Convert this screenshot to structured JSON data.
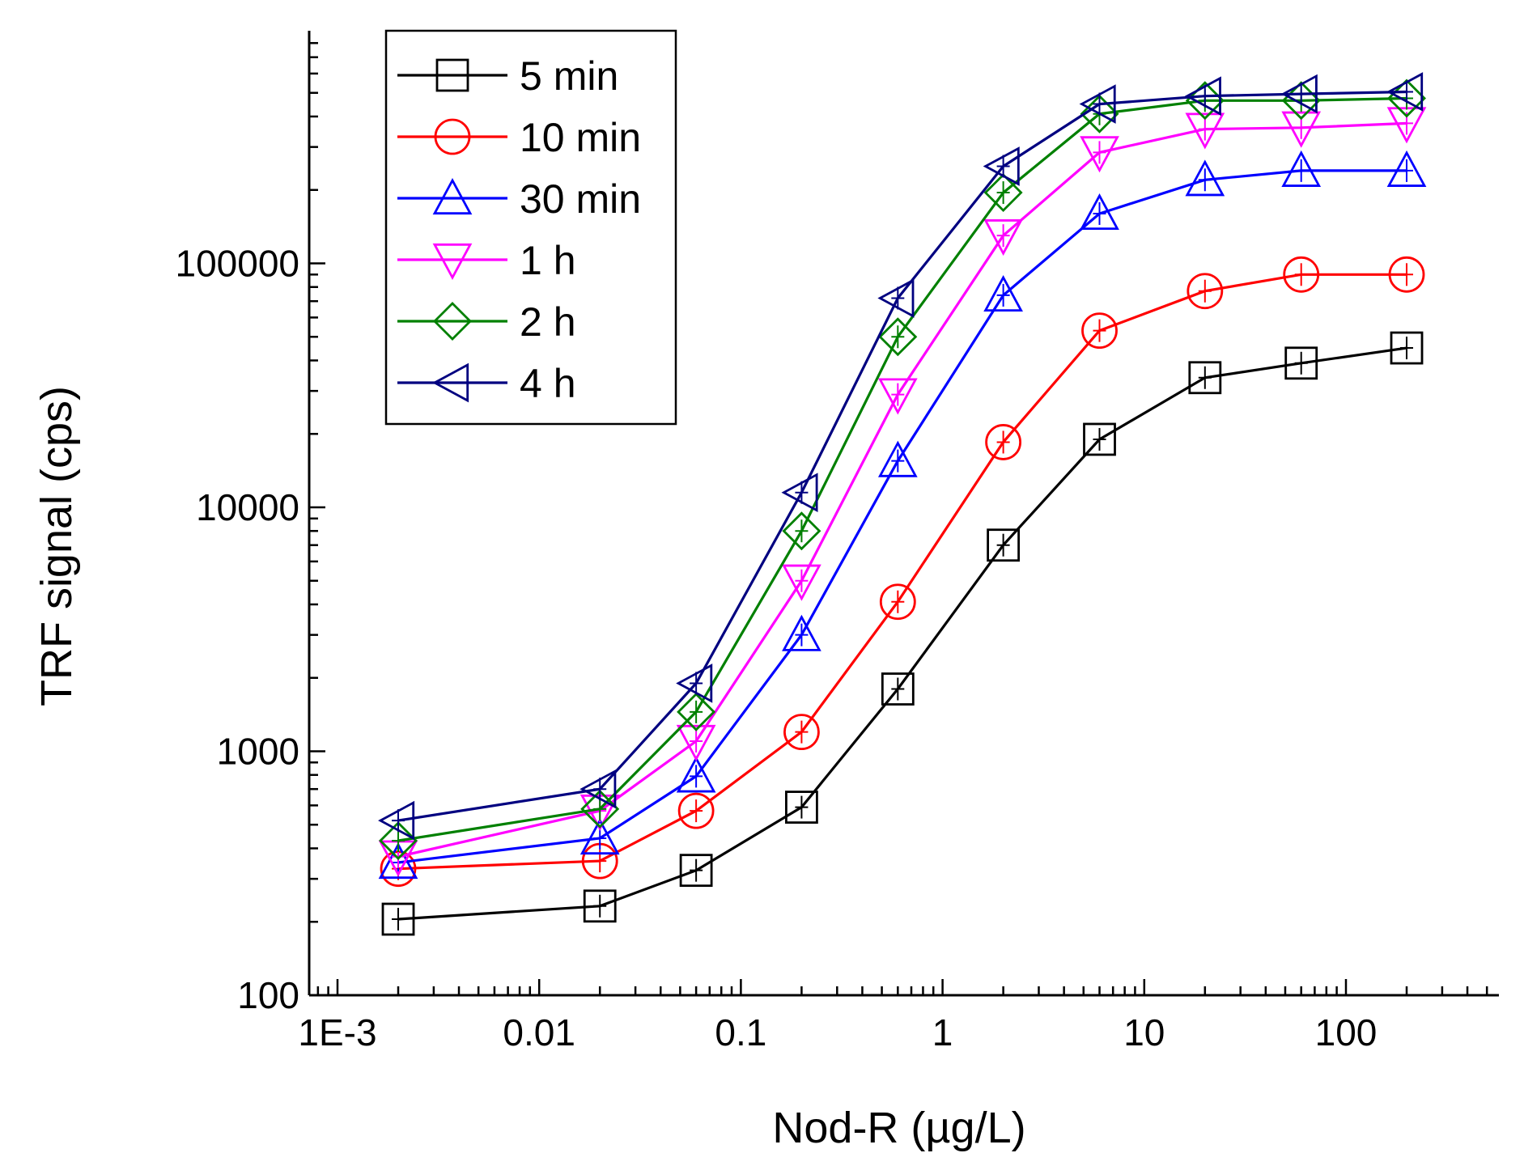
{
  "chart_data": {
    "type": "line",
    "xscale": "log",
    "yscale": "log",
    "xlabel": "Nod-R (µg/L)",
    "ylabel": "TRF signal (cps)",
    "xlim": [
      0.0005,
      600
    ],
    "ylim": [
      100,
      1000000
    ],
    "x_ticks": [
      {
        "value": 0.001,
        "label": "1E-3"
      },
      {
        "value": 0.01,
        "label": "0.01"
      },
      {
        "value": 0.1,
        "label": "0.1"
      },
      {
        "value": 1,
        "label": "1"
      },
      {
        "value": 10,
        "label": "10"
      },
      {
        "value": 100,
        "label": "100"
      }
    ],
    "y_ticks": [
      {
        "value": 100,
        "label": "100"
      },
      {
        "value": 1000,
        "label": "1000"
      },
      {
        "value": 10000,
        "label": "10000"
      },
      {
        "value": 100000,
        "label": "100000"
      }
    ],
    "x": [
      0.002,
      0.02,
      0.06,
      0.2,
      0.6,
      2,
      6,
      20,
      60,
      200
    ],
    "legend_position": "top-left",
    "series": [
      {
        "name": "5 min",
        "marker": "square",
        "color": "#000000",
        "values": [
          205,
          232,
          325,
          590,
          1800,
          7000,
          19000,
          34000,
          39000,
          45000
        ]
      },
      {
        "name": "10 min",
        "marker": "circle",
        "color": "#ff0000",
        "values": [
          330,
          355,
          570,
          1200,
          4100,
          18500,
          53000,
          77000,
          90000,
          90000
        ]
      },
      {
        "name": "30 min",
        "marker": "triangle-up",
        "color": "#0000ff",
        "values": [
          350,
          440,
          790,
          3000,
          15500,
          74000,
          160000,
          220000,
          240000,
          240000
        ]
      },
      {
        "name": "1 h",
        "marker": "triangle-down",
        "color": "#ff00ff",
        "values": [
          370,
          570,
          1100,
          5000,
          29000,
          130000,
          285000,
          355000,
          360000,
          375000
        ]
      },
      {
        "name": "2 h",
        "marker": "diamond",
        "color": "#008000",
        "values": [
          430,
          580,
          1450,
          8000,
          50000,
          195000,
          410000,
          465000,
          465000,
          475000
        ]
      },
      {
        "name": "4 h",
        "marker": "triangle-left",
        "color": "#000080",
        "values": [
          520,
          700,
          1900,
          11500,
          72000,
          250000,
          450000,
          485000,
          495000,
          505000
        ]
      }
    ]
  }
}
